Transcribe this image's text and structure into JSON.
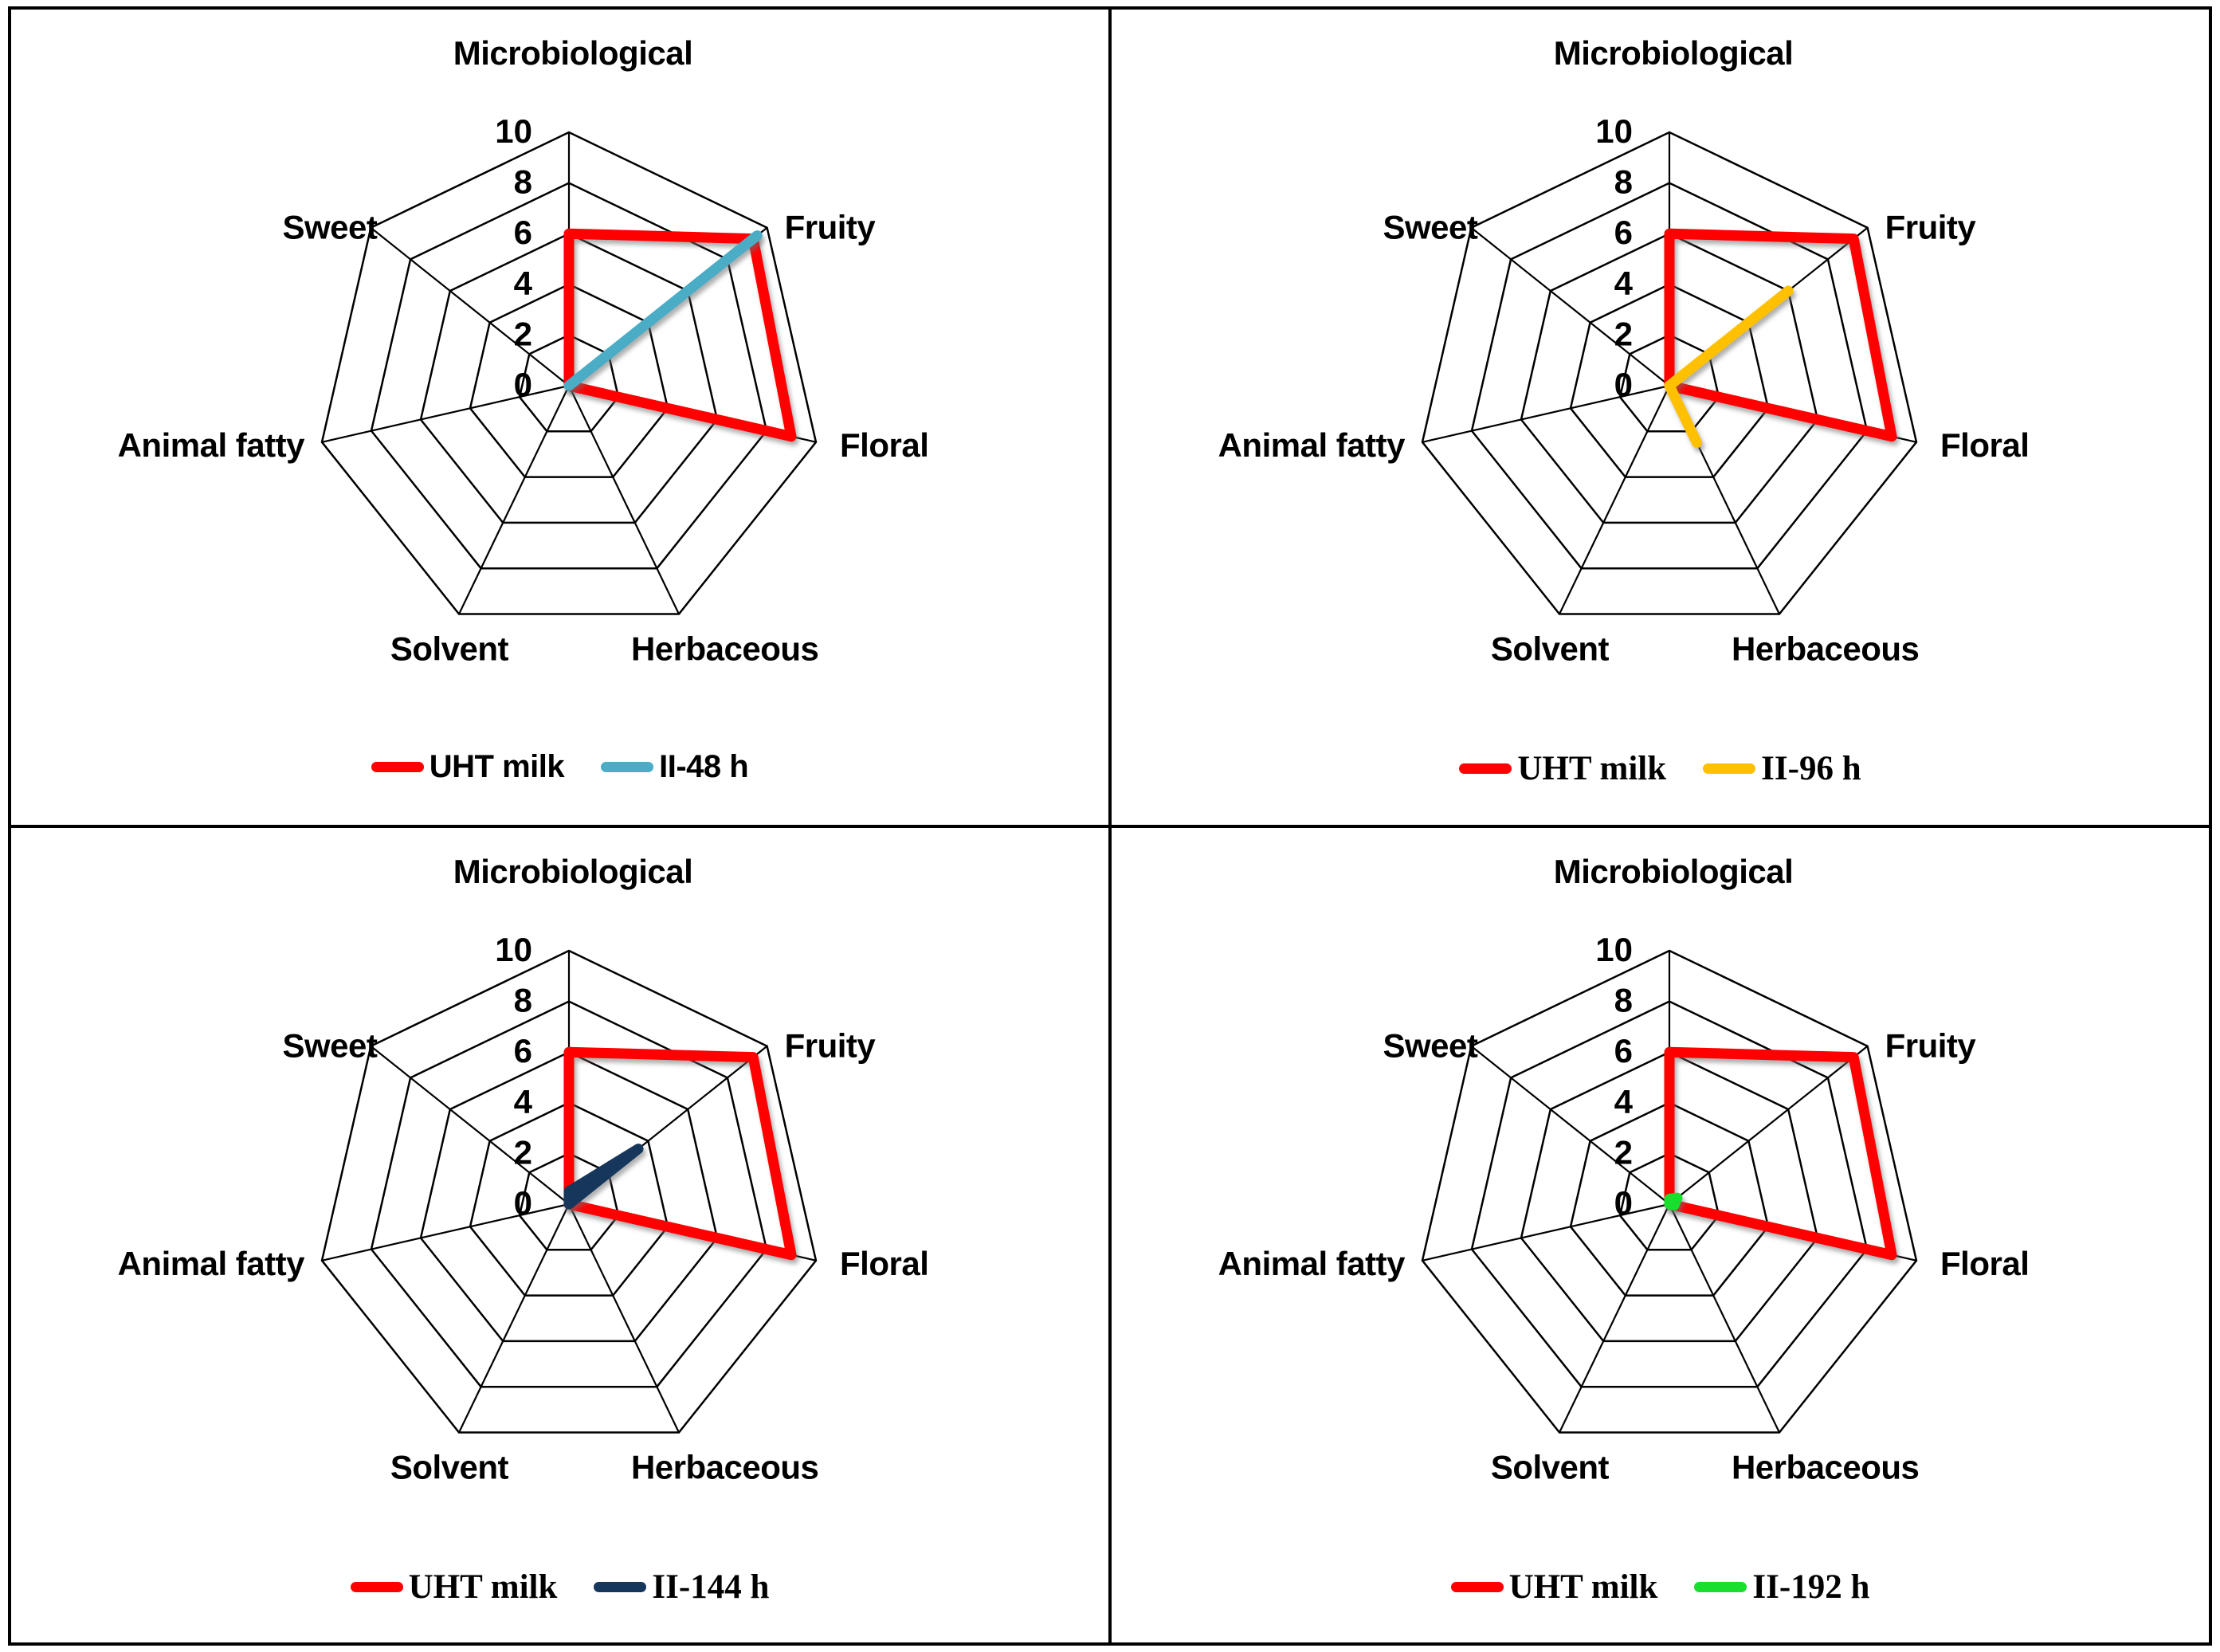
{
  "figure": {
    "background": "#ffffff",
    "panel_border_color": "#000000",
    "grid_line_color": "#000000",
    "text_color": "#000000",
    "layout": "2x2-grid"
  },
  "chart_data": [
    {
      "type": "radar",
      "position": "top-left",
      "categories": [
        "Microbiological",
        "Fruity",
        "Floral",
        "Herbaceous",
        "Solvent",
        "Animal fatty",
        "Sweet"
      ],
      "tick_labels": [
        "0",
        "2",
        "4",
        "6",
        "8",
        "10"
      ],
      "axis_range": [
        0,
        10
      ],
      "grid": true,
      "legend_position": "bottom",
      "legend_font": "sans",
      "series": [
        {
          "name": "UHT milk",
          "color": "#ff0000",
          "values": [
            6,
            9.3,
            9,
            0,
            0,
            0,
            0
          ]
        },
        {
          "name": "II-48 h",
          "color": "#4bacc6",
          "values": [
            0,
            9.5,
            0,
            0,
            0,
            0,
            0
          ]
        }
      ]
    },
    {
      "type": "radar",
      "position": "top-right",
      "categories": [
        "Microbiological",
        "Fruity",
        "Floral",
        "Herbaceous",
        "Solvent",
        "Animal fatty",
        "Sweet"
      ],
      "tick_labels": [
        "0",
        "2",
        "4",
        "6",
        "8",
        "10"
      ],
      "axis_range": [
        0,
        10
      ],
      "grid": true,
      "legend_position": "bottom",
      "legend_font": "serif",
      "series": [
        {
          "name": "UHT milk",
          "color": "#ff0000",
          "values": [
            6,
            9.3,
            9,
            0,
            0,
            0,
            0
          ]
        },
        {
          "name": "II-96 h",
          "color": "#ffc000",
          "values": [
            0,
            6,
            0,
            2.5,
            0,
            0,
            0
          ]
        }
      ]
    },
    {
      "type": "radar",
      "position": "bottom-left",
      "categories": [
        "Microbiological",
        "Fruity",
        "Floral",
        "Herbaceous",
        "Solvent",
        "Animal fatty",
        "Sweet"
      ],
      "tick_labels": [
        "0",
        "2",
        "4",
        "6",
        "8",
        "10"
      ],
      "axis_range": [
        0,
        10
      ],
      "grid": true,
      "legend_position": "bottom",
      "legend_font": "serif",
      "series": [
        {
          "name": "UHT milk",
          "color": "#ff0000",
          "values": [
            6,
            9.3,
            9,
            0,
            0,
            0,
            0
          ]
        },
        {
          "name": "II-144 h",
          "color": "#16365c",
          "values": [
            0.5,
            3.5,
            0,
            0,
            0,
            0,
            0
          ]
        }
      ]
    },
    {
      "type": "radar",
      "position": "bottom-right",
      "categories": [
        "Microbiological",
        "Fruity",
        "Floral",
        "Herbaceous",
        "Solvent",
        "Animal fatty",
        "Sweet"
      ],
      "tick_labels": [
        "0",
        "2",
        "4",
        "6",
        "8",
        "10"
      ],
      "axis_range": [
        0,
        10
      ],
      "grid": true,
      "legend_position": "bottom",
      "legend_font": "serif",
      "series": [
        {
          "name": "UHT milk",
          "color": "#ff0000",
          "values": [
            6,
            9.3,
            9,
            0,
            0,
            0,
            0
          ]
        },
        {
          "name": "II-192 h",
          "color": "#1ade2e",
          "values": [
            0.2,
            0.4,
            0.2,
            0,
            0,
            0,
            0
          ]
        }
      ]
    }
  ]
}
